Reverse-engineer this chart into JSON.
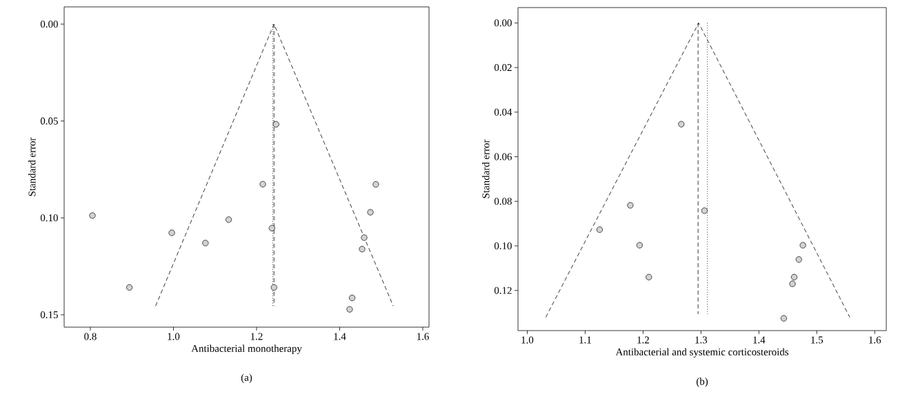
{
  "chart_data": [
    {
      "type": "scatter",
      "xlabel": "Antibacterial monotherapy",
      "ylabel": "Standard error",
      "annotations": [
        "(a)"
      ],
      "xlim": [
        0.737,
        1.615
      ],
      "ylim": [
        0.1564,
        -0.0089
      ],
      "xticks": [
        {
          "value": 0.8,
          "label": "0.8"
        },
        {
          "value": 1.0,
          "label": "1.0"
        },
        {
          "value": 1.2,
          "label": "1.2"
        },
        {
          "value": 1.4,
          "label": "1.4"
        },
        {
          "value": 1.6,
          "label": "1.6"
        }
      ],
      "yticks": [
        {
          "value": 0,
          "label": "0.00"
        },
        {
          "value": 0.05,
          "label": "0.05"
        },
        {
          "value": 0.1,
          "label": "0.10"
        },
        {
          "value": 0.15,
          "label": "0.15"
        }
      ],
      "marker": "circle",
      "series": [
        {
          "color": "#d3d3d3",
          "x": [
            1.247,
            1.215,
            1.487,
            0.805,
            1.474,
            1.133,
            0.996,
            1.237,
            1.077,
            1.459,
            1.454,
            0.894,
            1.242,
            1.43,
            1.424
          ],
          "values": [
            0.0517,
            0.0826,
            0.0827,
            0.0988,
            0.0971,
            0.1009,
            0.1077,
            0.1053,
            0.113,
            0.1102,
            0.1161,
            0.1359,
            0.1359,
            0.1413,
            0.1472
          ]
        },
        {
          "type": "line",
          "color": "#000000",
          "marker": "none",
          "line_style": "dashed",
          "x": [
            0.957,
            1.242,
            1.529
          ],
          "values": [
            0.1455,
            0,
            0.1455
          ]
        },
        {
          "type": "line",
          "color": "#000000",
          "marker": "none",
          "line_style": "dashed",
          "x": [
            1.242,
            1.242
          ],
          "values": [
            0,
            0.1455
          ]
        },
        {
          "type": "line",
          "color": "#000000",
          "marker": "none",
          "line_style": "dotted",
          "x": [
            1.239,
            1.239
          ],
          "values": [
            0,
            0.1455
          ]
        }
      ]
    },
    {
      "type": "scatter",
      "xlabel": "Antibacterial and systemic corticosteroids",
      "ylabel": "Standard error",
      "annotations": [
        "(b)"
      ],
      "xlim": [
        0.984,
        1.62
      ],
      "ylim": [
        0.138,
        -0.0069
      ],
      "xticks": [
        {
          "value": 1.0,
          "label": "1.0"
        },
        {
          "value": 1.1,
          "label": "1.1"
        },
        {
          "value": 1.2,
          "label": "1.2"
        },
        {
          "value": 1.3,
          "label": "1.3"
        },
        {
          "value": 1.4,
          "label": "1.4"
        },
        {
          "value": 1.5,
          "label": "1.5"
        },
        {
          "value": 1.6,
          "label": "1.6"
        }
      ],
      "yticks": [
        {
          "value": 0,
          "label": "0.00"
        },
        {
          "value": 0.02,
          "label": "0.02"
        },
        {
          "value": 0.04,
          "label": "0.04"
        },
        {
          "value": 0.06,
          "label": "0.06"
        },
        {
          "value": 0.08,
          "label": "0.08"
        },
        {
          "value": 0.1,
          "label": "0.10"
        },
        {
          "value": 0.12,
          "label": "0.12"
        }
      ],
      "marker": "circle",
      "series": [
        {
          "color": "#d3d3d3",
          "x": [
            1.266,
            1.178,
            1.306,
            1.125,
            1.194,
            1.476,
            1.469,
            1.21,
            1.461,
            1.458,
            1.443
          ],
          "values": [
            0.0454,
            0.0818,
            0.0842,
            0.0927,
            0.0997,
            0.0997,
            0.1061,
            0.114,
            0.114,
            0.117,
            0.1325
          ]
        },
        {
          "type": "line",
          "color": "#000000",
          "marker": "none",
          "line_style": "dashed",
          "x": [
            1.032,
            1.296,
            1.557
          ],
          "values": [
            0.132,
            0,
            0.132
          ]
        },
        {
          "type": "line",
          "color": "#000000",
          "marker": "none",
          "line_style": "dashed",
          "x": [
            1.295,
            1.295
          ],
          "values": [
            0,
            0.1306
          ]
        },
        {
          "type": "line",
          "color": "#000000",
          "marker": "none",
          "line_style": "dotted",
          "x": [
            1.311,
            1.311
          ],
          "values": [
            0,
            0.1306
          ]
        }
      ]
    }
  ]
}
